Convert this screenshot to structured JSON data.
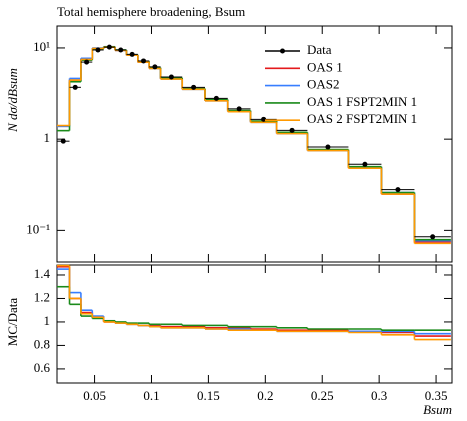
{
  "chart_data": [
    {
      "type": "histogram",
      "title": "Total hemisphere broadening, Bsum",
      "ylabel": "N dσ/dBsum",
      "bins": [
        0.017,
        0.028,
        0.038,
        0.048,
        0.058,
        0.068,
        0.078,
        0.088,
        0.098,
        0.108,
        0.127,
        0.147,
        0.167,
        0.187,
        0.21,
        0.237,
        0.273,
        0.302,
        0.331,
        0.363
      ],
      "xlim": [
        0.017,
        0.364
      ],
      "ylim": [
        0.045,
        17.4
      ],
      "logy": true,
      "yticks": [
        {
          "value": 0.1,
          "label": "10⁻¹"
        },
        1,
        {
          "value": 10,
          "label": "10¹"
        }
      ],
      "legend": "upper right",
      "series": [
        {
          "name": "Data",
          "color": "#000000",
          "style": "points",
          "values": [
            0.95,
            3.7,
            7.0,
            9.5,
            10.2,
            9.5,
            8.5,
            7.2,
            6.2,
            4.8,
            3.7,
            2.8,
            2.15,
            1.65,
            1.25,
            0.82,
            0.53,
            0.28,
            0.085
          ]
        },
        {
          "name": "OAS 1",
          "color": "#e41a1c",
          "values": [
            1.4,
            4.44,
            7.56,
            9.88,
            10.2,
            9.41,
            8.33,
            6.98,
            6.01,
            4.61,
            3.55,
            2.66,
            2.04,
            1.55,
            1.16,
            0.76,
            0.49,
            0.25,
            0.075
          ]
        },
        {
          "name": "OAS2",
          "color": "#377eff",
          "values": [
            1.38,
            4.63,
            7.7,
            9.98,
            10.3,
            9.41,
            8.33,
            6.98,
            5.95,
            4.56,
            3.52,
            2.63,
            2.02,
            1.53,
            1.15,
            0.75,
            0.49,
            0.26,
            0.077
          ]
        },
        {
          "name": "OAS 1 FSPT2MIN 1",
          "color": "#1a8a1a",
          "values": [
            1.24,
            4.26,
            7.35,
            9.79,
            10.3,
            9.5,
            8.42,
            7.13,
            6.08,
            4.7,
            3.59,
            2.72,
            2.06,
            1.58,
            1.19,
            0.77,
            0.5,
            0.26,
            0.079
          ]
        },
        {
          "name": "OAS 2 FSPT2MIN 1",
          "color": "#ff9900",
          "values": [
            1.41,
            4.44,
            7.49,
            9.88,
            10.2,
            9.41,
            8.33,
            6.98,
            5.95,
            4.56,
            3.52,
            2.63,
            2.0,
            1.53,
            1.15,
            0.75,
            0.48,
            0.25,
            0.072
          ]
        }
      ]
    },
    {
      "type": "histogram",
      "ylabel": "MC/Data",
      "xlabel": "Bsum",
      "bins": [
        0.017,
        0.028,
        0.038,
        0.048,
        0.058,
        0.068,
        0.078,
        0.088,
        0.098,
        0.108,
        0.127,
        0.147,
        0.167,
        0.187,
        0.21,
        0.237,
        0.273,
        0.302,
        0.331,
        0.363
      ],
      "xlim": [
        0.017,
        0.364
      ],
      "ylim": [
        0.48,
        1.485
      ],
      "xticks": [
        0.05,
        0.1,
        0.15,
        0.2,
        0.25,
        0.3,
        0.35
      ],
      "yticks": [
        0.6,
        0.8,
        1,
        1.2,
        1.4
      ],
      "series": [
        {
          "color": "#e41a1c",
          "values": [
            1.47,
            1.2,
            1.08,
            1.04,
            1.0,
            0.99,
            0.98,
            0.97,
            0.97,
            0.96,
            0.96,
            0.95,
            0.95,
            0.94,
            0.93,
            0.93,
            0.92,
            0.91,
            0.88
          ]
        },
        {
          "color": "#377eff",
          "values": [
            1.45,
            1.25,
            1.1,
            1.05,
            1.01,
            0.99,
            0.98,
            0.97,
            0.96,
            0.95,
            0.95,
            0.94,
            0.94,
            0.93,
            0.92,
            0.92,
            0.92,
            0.92,
            0.9
          ]
        },
        {
          "color": "#1a8a1a",
          "values": [
            1.3,
            1.15,
            1.05,
            1.03,
            1.01,
            1.0,
            0.99,
            0.99,
            0.98,
            0.98,
            0.97,
            0.97,
            0.96,
            0.96,
            0.95,
            0.94,
            0.94,
            0.93,
            0.93
          ]
        },
        {
          "color": "#ff9900",
          "values": [
            1.48,
            1.2,
            1.07,
            1.04,
            1.0,
            0.99,
            0.98,
            0.97,
            0.96,
            0.95,
            0.95,
            0.94,
            0.93,
            0.93,
            0.92,
            0.92,
            0.91,
            0.89,
            0.85
          ]
        }
      ]
    }
  ]
}
